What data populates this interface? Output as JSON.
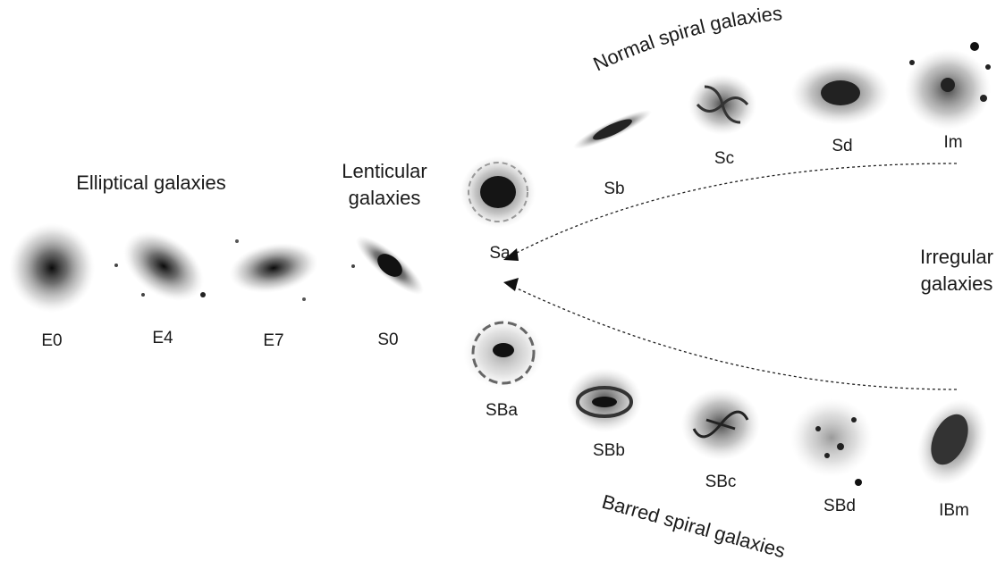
{
  "headings": {
    "elliptical": "Elliptical galaxies",
    "lenticular_line1": "Lenticular",
    "lenticular_line2": "galaxies",
    "irregular_line1": "Irregular",
    "irregular_line2": "galaxies",
    "normal_spiral": "Normal spiral galaxies",
    "barred_spiral": "Barred spiral galaxies"
  },
  "galaxies": {
    "e0": "E0",
    "e4": "E4",
    "e7": "E7",
    "s0": "S0",
    "sa": "Sa",
    "sb": "Sb",
    "sc": "Sc",
    "sd": "Sd",
    "im": "Im",
    "sba": "SBa",
    "sbb": "SBb",
    "sbc": "SBc",
    "sbd": "SBd",
    "ibm": "IBm"
  },
  "colors": {
    "ink": "#1a1a1a",
    "galaxy_core": "#111111",
    "galaxy_halo": "#9a9a9a"
  }
}
